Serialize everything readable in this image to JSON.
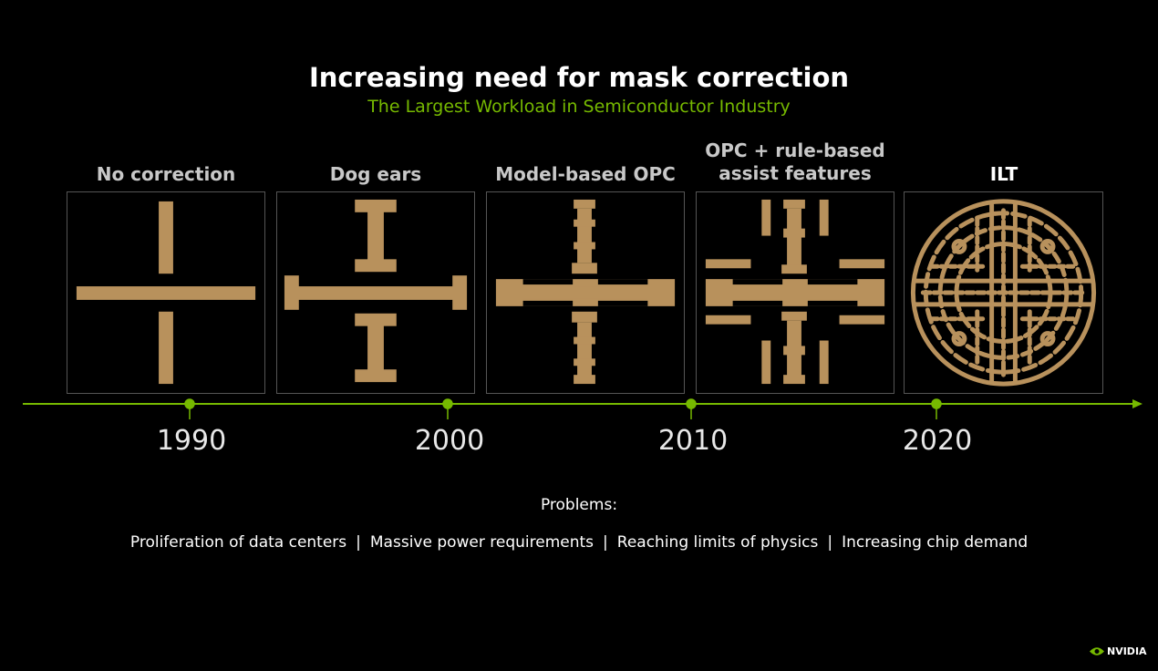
{
  "title": "Increasing need for mask correction",
  "subtitle": "The Largest Workload in Semiconductor Industry",
  "panels": [
    {
      "label": "No correction"
    },
    {
      "label": "Dog ears"
    },
    {
      "label": "Model-based OPC"
    },
    {
      "label_line1": "OPC + rule-based",
      "label_line2": "assist features"
    },
    {
      "label": "ILT"
    }
  ],
  "timeline": {
    "years": [
      "1990",
      "2000",
      "2010",
      "2020"
    ]
  },
  "problems": {
    "heading": "Problems:",
    "items": [
      "Proliferation of data centers",
      "Massive power requirements",
      "Reaching limits of physics",
      "Increasing chip demand"
    ],
    "separator": "|"
  },
  "brand": {
    "logo_text": "NVIDIA"
  },
  "colors": {
    "accent": "#76b900",
    "mask": "#b8915c",
    "background": "#000000"
  }
}
